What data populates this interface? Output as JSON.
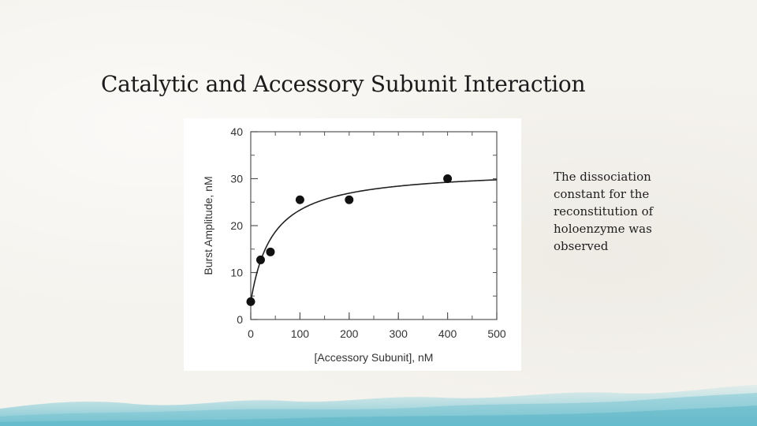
{
  "slide": {
    "title": "Catalytic and Accessory Subunit Interaction",
    "note": "The dissociation constant for the reconstitution of holoenzyme was observed"
  },
  "colors": {
    "marker": "#111111",
    "curve": "#222222",
    "axis": "#555555",
    "wash": "#7ec9d6"
  },
  "chart_data": {
    "type": "scatter",
    "xlabel": "[Accessory Subunit], nM",
    "ylabel": "Burst Amplitude, nM",
    "xlim": [
      0,
      500
    ],
    "ylim": [
      0,
      40
    ],
    "x_ticks": [
      0,
      100,
      200,
      300,
      400,
      500
    ],
    "y_ticks": [
      0,
      10,
      20,
      30,
      40
    ],
    "x_minor_step": 50,
    "y_minor_step": 5,
    "grid": false,
    "series": [
      {
        "points": [
          {
            "x": 0,
            "y": 3.8
          },
          {
            "x": 20,
            "y": 12.7
          },
          {
            "x": 40,
            "y": 14.4
          },
          {
            "x": 100,
            "y": 25.5
          },
          {
            "x": 200,
            "y": 25.5
          },
          {
            "x": 400,
            "y": 30.0
          }
        ]
      }
    ],
    "fit_curve": {
      "model": "hyperbolic",
      "y0": 3.8,
      "amplitude": 28.3,
      "kd": 45
    }
  }
}
